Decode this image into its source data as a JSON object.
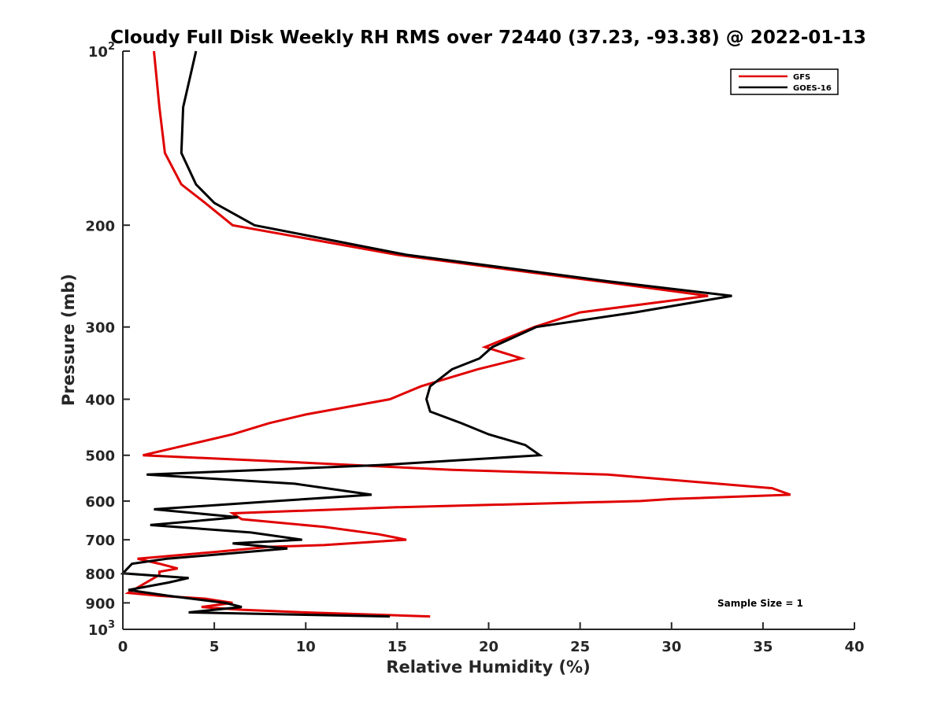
{
  "chart_data": {
    "type": "line",
    "title": "Cloudy Full Disk Weekly RH RMS over 72440 (37.23, -93.38) @ 2022-01-13",
    "xlabel": "Relative Humidity (%)",
    "ylabel": "Pressure (mb)",
    "xlim": [
      0,
      40
    ],
    "ylim": [
      100,
      1000
    ],
    "y_scale": "log",
    "y_reversed": true,
    "grid": false,
    "legend_position": "top-right",
    "x_ticks": [
      {
        "value": 0,
        "label": "0"
      },
      {
        "value": 5,
        "label": "5"
      },
      {
        "value": 10,
        "label": "10"
      },
      {
        "value": 15,
        "label": "15"
      },
      {
        "value": 20,
        "label": "20"
      },
      {
        "value": 25,
        "label": "25"
      },
      {
        "value": 30,
        "label": "30"
      },
      {
        "value": 35,
        "label": "35"
      },
      {
        "value": 40,
        "label": "40"
      }
    ],
    "y_ticks": [
      {
        "value": 100,
        "label": "10",
        "sup": "2"
      },
      {
        "value": 200,
        "label": "200"
      },
      {
        "value": 300,
        "label": "300"
      },
      {
        "value": 400,
        "label": "400"
      },
      {
        "value": 500,
        "label": "500"
      },
      {
        "value": 600,
        "label": "600"
      },
      {
        "value": 700,
        "label": "700"
      },
      {
        "value": 800,
        "label": "800"
      },
      {
        "value": 900,
        "label": "900"
      },
      {
        "value": 1000,
        "label": "10",
        "sup": "3"
      }
    ],
    "annotation": "Sample Size = 1",
    "series": [
      {
        "name": "GFS",
        "color": "#e00000",
        "points": [
          [
            1.7,
            100
          ],
          [
            2.0,
            125
          ],
          [
            2.3,
            150
          ],
          [
            3.2,
            170
          ],
          [
            4.5,
            183
          ],
          [
            6.0,
            200
          ],
          [
            15.0,
            225
          ],
          [
            26.0,
            250
          ],
          [
            32.0,
            265
          ],
          [
            25.0,
            283
          ],
          [
            22.5,
            300
          ],
          [
            19.8,
            325
          ],
          [
            21.8,
            340
          ],
          [
            19.4,
            355
          ],
          [
            16.3,
            380
          ],
          [
            14.6,
            400
          ],
          [
            10.0,
            425
          ],
          [
            8.0,
            440
          ],
          [
            6.0,
            460
          ],
          [
            3.5,
            480
          ],
          [
            1.1,
            500
          ],
          [
            10.0,
            515
          ],
          [
            18.0,
            530
          ],
          [
            26.5,
            540
          ],
          [
            35.5,
            570
          ],
          [
            36.5,
            585
          ],
          [
            30.0,
            595
          ],
          [
            28.3,
            600
          ],
          [
            15.0,
            615
          ],
          [
            6.0,
            630
          ],
          [
            6.5,
            645
          ],
          [
            11.0,
            665
          ],
          [
            14.0,
            685
          ],
          [
            15.5,
            700
          ],
          [
            11.0,
            715
          ],
          [
            8.0,
            720
          ],
          [
            5.0,
            735
          ],
          [
            0.8,
            755
          ],
          [
            2.0,
            770
          ],
          [
            3.0,
            785
          ],
          [
            2.0,
            795
          ],
          [
            2.0,
            805
          ],
          [
            0.3,
            865
          ],
          [
            2.0,
            875
          ],
          [
            4.5,
            885
          ],
          [
            6.0,
            900
          ],
          [
            4.3,
            915
          ],
          [
            6.5,
            925
          ],
          [
            10.0,
            935
          ],
          [
            16.8,
            950
          ]
        ]
      },
      {
        "name": "GOES-16",
        "color": "#000000",
        "points": [
          [
            4.0,
            100
          ],
          [
            3.3,
            125
          ],
          [
            3.2,
            150
          ],
          [
            4.0,
            170
          ],
          [
            5.0,
            183
          ],
          [
            7.2,
            200
          ],
          [
            15.5,
            225
          ],
          [
            26.5,
            250
          ],
          [
            33.3,
            265
          ],
          [
            28.0,
            283
          ],
          [
            22.6,
            300
          ],
          [
            20.2,
            325
          ],
          [
            19.5,
            340
          ],
          [
            18.0,
            355
          ],
          [
            16.8,
            380
          ],
          [
            16.6,
            400
          ],
          [
            16.8,
            420
          ],
          [
            18.5,
            440
          ],
          [
            20.0,
            460
          ],
          [
            22.0,
            480
          ],
          [
            22.8,
            500
          ],
          [
            14.0,
            520
          ],
          [
            1.3,
            540
          ],
          [
            9.4,
            560
          ],
          [
            13.6,
            585
          ],
          [
            8.4,
            600
          ],
          [
            1.7,
            620
          ],
          [
            6.3,
            640
          ],
          [
            1.5,
            660
          ],
          [
            7.0,
            680
          ],
          [
            9.8,
            700
          ],
          [
            6.0,
            710
          ],
          [
            9.0,
            725
          ],
          [
            2.4,
            755
          ],
          [
            0.5,
            770
          ],
          [
            0.0,
            800
          ],
          [
            3.6,
            815
          ],
          [
            2.5,
            830
          ],
          [
            0.3,
            855
          ],
          [
            2.5,
            875
          ],
          [
            5.6,
            900
          ],
          [
            6.5,
            915
          ],
          [
            3.6,
            935
          ],
          [
            14.6,
            950
          ]
        ]
      }
    ]
  }
}
